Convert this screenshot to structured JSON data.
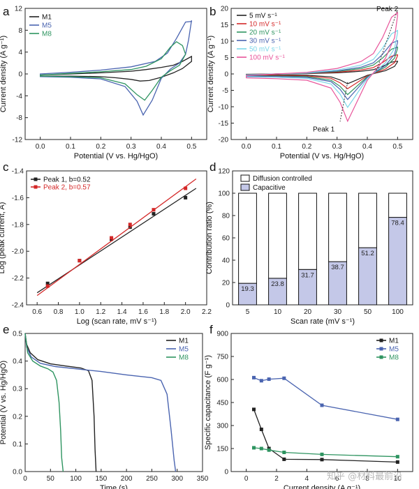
{
  "figure": {
    "watermark": "知乎 @材料最前沿",
    "corner_text": "",
    "colors": {
      "M1": "#222222",
      "M5": "#4a64b0",
      "M8": "#2e9460",
      "pink": "#e8549a",
      "cyan": "#7bd6e8",
      "red": "#d42828",
      "bar_fill": "#c4c8e8",
      "axis": "#222222"
    }
  },
  "chart_data": [
    {
      "panel": "a",
      "type": "line",
      "title": "",
      "xlabel": "Potential (V vs. Hg/HgO)",
      "ylabel": "Current density (A g⁻¹)",
      "xlim": [
        -0.05,
        0.55
      ],
      "ylim": [
        -12,
        12
      ],
      "xticks": [
        "0.0",
        "0.1",
        "0.2",
        "0.3",
        "0.4",
        "0.5"
      ],
      "yticks": [
        "-12",
        "-8",
        "-4",
        "0",
        "4",
        "8",
        "12"
      ],
      "xtick_values": [
        0,
        0.1,
        0.2,
        0.3,
        0.4,
        0.5
      ],
      "ytick_values": [
        -12,
        -8,
        -4,
        0,
        4,
        8,
        12
      ],
      "legend": {
        "position": "top-left",
        "entries": [
          "M1",
          "M5",
          "M8"
        ]
      },
      "series": [
        {
          "name": "M1",
          "color": "M1",
          "x": [
            0,
            0.1,
            0.2,
            0.25,
            0.3,
            0.33,
            0.36,
            0.4,
            0.44,
            0.47,
            0.5,
            0.5,
            0.47,
            0.44,
            0.4,
            0.35,
            0.3,
            0.2,
            0.1,
            0
          ],
          "y": [
            -0.4,
            -0.4,
            -0.5,
            -0.7,
            -1.0,
            -1.3,
            -1.2,
            -0.6,
            0.2,
            1.0,
            2.3,
            3.2,
            2.3,
            1.6,
            1.2,
            0.8,
            0.5,
            0.2,
            0,
            -0.2
          ]
        },
        {
          "name": "M5",
          "color": "M5",
          "x": [
            0,
            0.1,
            0.2,
            0.28,
            0.32,
            0.34,
            0.37,
            0.4,
            0.43,
            0.46,
            0.48,
            0.49,
            0.5,
            0.5,
            0.48,
            0.45,
            0.42,
            0.38,
            0.3,
            0.2,
            0.1,
            0
          ],
          "y": [
            -0.5,
            -0.6,
            -0.9,
            -2.3,
            -5.0,
            -7.5,
            -4.8,
            -0.8,
            0.9,
            2.0,
            3.6,
            6.2,
            9.8,
            9.6,
            9.5,
            6.5,
            3.8,
            2.3,
            1.3,
            0.7,
            0.3,
            0
          ]
        },
        {
          "name": "M8",
          "color": "M8",
          "x": [
            0,
            0.1,
            0.2,
            0.28,
            0.32,
            0.345,
            0.37,
            0.4,
            0.43,
            0.46,
            0.48,
            0.47,
            0.45,
            0.43,
            0.4,
            0.35,
            0.3,
            0.2,
            0.1,
            0
          ],
          "y": [
            -0.4,
            -0.5,
            -0.7,
            -1.8,
            -3.8,
            -4.8,
            -3.0,
            -0.6,
            0.6,
            1.6,
            3.6,
            5.2,
            5.9,
            4.9,
            2.8,
            1.4,
            0.8,
            0.4,
            0.1,
            -0.2
          ]
        }
      ]
    },
    {
      "panel": "b",
      "type": "line",
      "xlabel": "Potential (V vs. Hg/HgO)",
      "ylabel": "Current density (A g⁻¹)",
      "xlim": [
        -0.05,
        0.55
      ],
      "ylim": [
        -20,
        20
      ],
      "xticks": [
        "0.0",
        "0.1",
        "0.2",
        "0.3",
        "0.4",
        "0.5"
      ],
      "yticks": [
        "-20",
        "-15",
        "-10",
        "-5",
        "0",
        "5",
        "10",
        "15",
        "20"
      ],
      "xtick_values": [
        0,
        0.1,
        0.2,
        0.3,
        0.4,
        0.5
      ],
      "ytick_values": [
        -20,
        -15,
        -10,
        -5,
        0,
        5,
        10,
        15,
        20
      ],
      "legend": {
        "position": "top-left",
        "entries": [
          "5    mV s⁻¹",
          "10  mV s⁻¹",
          "20  mV s⁻¹",
          "30  mV s⁻¹",
          "50  mV s⁻¹",
          "100 mV s⁻¹"
        ]
      },
      "annotations": [
        "Peak 2",
        "Peak 1"
      ],
      "peak_guides": {
        "peak2": {
          "x": [
            0.43,
            0.5
          ],
          "y": [
            1.0,
            19.5
          ]
        },
        "peak1": {
          "x": [
            0.335,
            0.31
          ],
          "y": [
            -2.5,
            -14.5
          ]
        }
      },
      "series": [
        {
          "name": "5 mV s-1",
          "color": "M1",
          "scale": 1.0
        },
        {
          "name": "10 mV s-1",
          "color": "red",
          "scale": 1.5
        },
        {
          "name": "20 mV s-1",
          "color": "M8",
          "scale": 2.1
        },
        {
          "name": "30 mV s-1",
          "color": "M5",
          "scale": 2.6
        },
        {
          "name": "50 mV s-1",
          "color": "cyan",
          "scale": 3.4
        },
        {
          "name": "100 mV s-1",
          "color": "pink",
          "scale": 4.8
        }
      ],
      "base_curve": {
        "x": [
          0,
          0.1,
          0.2,
          0.28,
          0.31,
          0.335,
          0.36,
          0.4,
          0.43,
          0.46,
          0.49,
          0.5,
          0.5,
          0.48,
          0.45,
          0.42,
          0.38,
          0.3,
          0.2,
          0.1,
          0
        ],
        "y": [
          -0.25,
          -0.3,
          -0.4,
          -0.9,
          -1.8,
          -3.0,
          -2.0,
          -0.4,
          0.3,
          1.0,
          2.3,
          3.7,
          3.9,
          3.6,
          2.3,
          1.3,
          0.8,
          0.35,
          0.1,
          0,
          -0.1
        ]
      }
    },
    {
      "panel": "c",
      "type": "scatter",
      "xlabel": "Log (scan rate, mV s⁻¹)",
      "ylabel": "Log (peak current, A)",
      "xlim": [
        0.5,
        2.2
      ],
      "ylim": [
        -2.4,
        -1.4
      ],
      "xticks": [
        "0.6",
        "0.8",
        "1.0",
        "1.2",
        "1.4",
        "1.6",
        "1.8",
        "2.0",
        "2.2"
      ],
      "yticks": [
        "-2.4",
        "-2.2",
        "-2.0",
        "-1.8",
        "-1.6",
        "-1.4"
      ],
      "xtick_values": [
        0.6,
        0.8,
        1.0,
        1.2,
        1.4,
        1.6,
        1.8,
        2.0,
        2.2
      ],
      "ytick_values": [
        -2.4,
        -2.2,
        -2.0,
        -1.8,
        -1.6,
        -1.4
      ],
      "legend": {
        "position": "top-left",
        "entries": [
          "Peak 1, b=0.52",
          "Peak 2, b=0.57"
        ]
      },
      "series": [
        {
          "name": "Peak 1, b=0.52",
          "color": "M1",
          "x": [
            0.699,
            1.0,
            1.301,
            1.477,
            1.699,
            2.0
          ],
          "y": [
            -2.24,
            -2.07,
            -1.91,
            -1.82,
            -1.72,
            -1.6
          ],
          "fit": {
            "x": [
              0.6,
              2.1
            ],
            "y": [
              -2.31,
              -1.53
            ]
          }
        },
        {
          "name": "Peak 2, b=0.57",
          "color": "red",
          "x": [
            0.699,
            1.0,
            1.301,
            1.477,
            1.699,
            2.0
          ],
          "y": [
            -2.26,
            -2.07,
            -1.9,
            -1.8,
            -1.69,
            -1.53
          ],
          "fit": {
            "x": [
              0.6,
              2.1
            ],
            "y": [
              -2.33,
              -1.46
            ]
          }
        }
      ]
    },
    {
      "panel": "d",
      "type": "bar",
      "xlabel": "Scan rate (mV s⁻¹)",
      "ylabel": "Contribution ratio (%)",
      "ylim": [
        0,
        120
      ],
      "yticks": [
        "0",
        "20",
        "40",
        "60",
        "80",
        "100",
        "120"
      ],
      "ytick_values": [
        0,
        20,
        40,
        60,
        80,
        100,
        120
      ],
      "categories": [
        "5",
        "10",
        "20",
        "30",
        "50",
        "100"
      ],
      "legend": {
        "position": "top",
        "entries": [
          "Diffusion controlled",
          "Capacitive"
        ]
      },
      "series": [
        {
          "name": "Capacitive",
          "values": [
            19.3,
            23.8,
            31.7,
            38.7,
            51.2,
            78.4
          ]
        },
        {
          "name": "Diffusion controlled",
          "values": [
            80.7,
            76.2,
            68.3,
            61.3,
            48.8,
            21.6
          ]
        }
      ],
      "data_labels": [
        "19.3",
        "23.8",
        "31.7",
        "38.7",
        "51.2",
        "78.4"
      ]
    },
    {
      "panel": "e",
      "type": "line",
      "xlabel": "Time (s)",
      "ylabel": "Potential (V vs. Hg/HgO)",
      "xlim": [
        0,
        350
      ],
      "ylim": [
        0.0,
        0.5
      ],
      "xticks": [
        "0",
        "50",
        "100",
        "150",
        "200",
        "250",
        "300",
        "350"
      ],
      "yticks": [
        "0.0",
        "0.1",
        "0.2",
        "0.3",
        "0.4",
        "0.5"
      ],
      "xtick_values": [
        0,
        50,
        100,
        150,
        200,
        250,
        300,
        350
      ],
      "ytick_values": [
        0.0,
        0.1,
        0.2,
        0.3,
        0.4,
        0.5
      ],
      "legend": {
        "position": "top-right",
        "entries": [
          "M1",
          "M5",
          "M8"
        ]
      },
      "series": [
        {
          "name": "M1",
          "color": "M1",
          "x": [
            0,
            3,
            10,
            25,
            50,
            80,
            110,
            125,
            132,
            136,
            138,
            140
          ],
          "y": [
            0.5,
            0.46,
            0.43,
            0.405,
            0.39,
            0.382,
            0.375,
            0.365,
            0.33,
            0.2,
            0.08,
            0
          ]
        },
        {
          "name": "M5",
          "color": "M5",
          "x": [
            0,
            3,
            12,
            30,
            60,
            100,
            150,
            200,
            250,
            268,
            280,
            288,
            294,
            297
          ],
          "y": [
            0.5,
            0.45,
            0.415,
            0.392,
            0.38,
            0.372,
            0.362,
            0.35,
            0.34,
            0.33,
            0.28,
            0.15,
            0.04,
            0
          ]
        },
        {
          "name": "M8",
          "color": "M8",
          "x": [
            0,
            5,
            15,
            30,
            45,
            55,
            62,
            67,
            70,
            72,
            75
          ],
          "y": [
            0.5,
            0.43,
            0.4,
            0.382,
            0.372,
            0.36,
            0.33,
            0.25,
            0.15,
            0.05,
            0
          ]
        }
      ]
    },
    {
      "panel": "f",
      "type": "line",
      "xlabel": "Current density (A g⁻¹)",
      "ylabel": "Specific capacitance (F g⁻¹)",
      "xlim": [
        -1,
        11
      ],
      "ylim": [
        0,
        900
      ],
      "xticks": [
        "0",
        "2",
        "4",
        "6",
        "8",
        "10"
      ],
      "yticks": [
        "0",
        "150",
        "300",
        "450",
        "600",
        "750",
        "900"
      ],
      "xtick_values": [
        0,
        2,
        4,
        6,
        8,
        10
      ],
      "ytick_values": [
        0,
        150,
        300,
        450,
        600,
        750,
        900
      ],
      "legend": {
        "position": "top-right",
        "entries": [
          "M1",
          "M5",
          "M8"
        ]
      },
      "series": [
        {
          "name": "M1",
          "color": "M1",
          "x": [
            0.5,
            1,
            1.5,
            2.5,
            5,
            10
          ],
          "y": [
            405,
            275,
            150,
            80,
            78,
            62
          ]
        },
        {
          "name": "M5",
          "color": "M5",
          "x": [
            0.5,
            1,
            1.5,
            2.5,
            5,
            10
          ],
          "y": [
            612,
            592,
            602,
            608,
            432,
            340
          ]
        },
        {
          "name": "M8",
          "color": "M8",
          "x": [
            0.5,
            1,
            1.5,
            2.5,
            5,
            10
          ],
          "y": [
            155,
            150,
            140,
            125,
            112,
            97
          ]
        }
      ]
    }
  ]
}
